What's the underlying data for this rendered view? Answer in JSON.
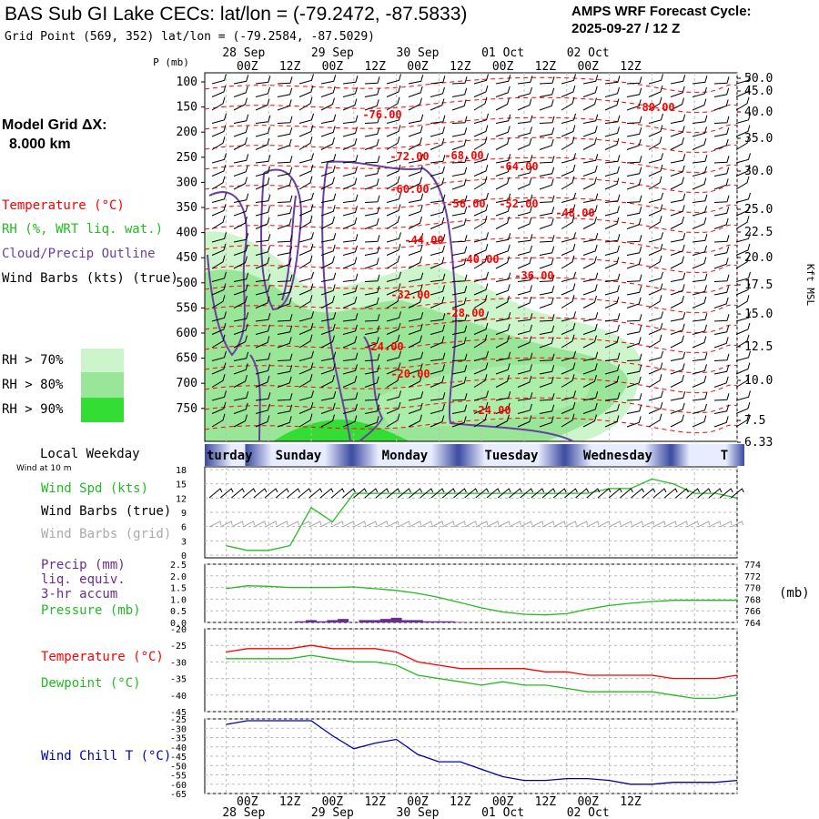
{
  "header": {
    "title": "BAS Sub GI Lake CECs:  lat/lon = (-79.2472, -87.5833)",
    "subtitle": "Grid Point (569, 352) lat/lon = (-79.2584, -87.5029)",
    "cycle_label": "AMPS WRF Forecast Cycle:",
    "cycle_value": "2025-09-27 / 12  Z"
  },
  "model_grid": {
    "label": "Model Grid ΔX:",
    "value": "8.000 km"
  },
  "legend": {
    "temperature": "Temperature (°C)",
    "rh": "RH (%, WRT liq. wat.)",
    "cloud": "Cloud/Precip Outline",
    "wind": "Wind Barbs (kts) (true)",
    "rh70": "RH > 70%",
    "rh80": "RH > 80%",
    "rh90": "RH > 90%"
  },
  "colors": {
    "temperature": "#ff0000",
    "rh": "#22bb22",
    "cloud": "#6a3fa0",
    "rh70": "#ccf5cc",
    "rh80": "#99e699",
    "rh90": "#33dd33",
    "windchill": "#0000aa",
    "grid_barbs": "#aaaaaa",
    "precip": "#6a2d8f",
    "day_band": "#3a4aa0"
  },
  "time_axis": {
    "hours": [
      "00Z",
      "12Z",
      "00Z",
      "12Z",
      "00Z",
      "12Z",
      "00Z",
      "12Z",
      "00Z",
      "12Z"
    ],
    "dates": [
      "28 Sep",
      "29 Sep",
      "30 Sep",
      "01 Oct",
      "02 Oct"
    ],
    "days": [
      "Saturday",
      "Sunday",
      "Monday",
      "Tuesday",
      "Wednesday",
      "T"
    ]
  },
  "local_weekday": {
    "label": "Local Weekday",
    "wind_note": "Wind at 10 m"
  },
  "cross_section": {
    "ylabel": "P (mb)",
    "pressure_ticks": [
      "100",
      "150",
      "200",
      "250",
      "300",
      "350",
      "400",
      "450",
      "500",
      "550",
      "600",
      "650",
      "700",
      "750"
    ],
    "kft_ticks": [
      "50.0",
      "45.0",
      "40.0",
      "35.0",
      "30.0",
      "25.0",
      "22.5",
      "20.0",
      "17.5",
      "15.0",
      "12.5",
      "10.0",
      "7.5",
      "6.33"
    ],
    "kft_label": "Kft MSL",
    "temp_labels": [
      "-76.00",
      "-80.00",
      "-72.00",
      "-68.00",
      "-64.00",
      "-60.00",
      "-56.00",
      "-52.00",
      "-48.00",
      "-44.00",
      "-40.00",
      "-36.00",
      "-32.00",
      "-28.00",
      "-24.00",
      "-20.00",
      "-24.00"
    ]
  },
  "panel_wind": {
    "labels": {
      "speed": "Wind Spd (kts)",
      "barbs": "Wind Barbs (true)",
      "grid": "Wind Barbs (grid)"
    },
    "yticks": [
      "18",
      "15",
      "12",
      "9",
      "6",
      "3",
      "0"
    ]
  },
  "panel_precip": {
    "labels": {
      "precip1": "Precip (mm)",
      "precip2": "liq. equiv.",
      "precip3": "3-hr accum",
      "pressure": "Pressure (mb)",
      "unit": "(mb)"
    },
    "yticks_left": [
      "2.5",
      "2.0",
      "1.5",
      "1.0",
      "0.5",
      "0.0"
    ],
    "yticks_right": [
      "774",
      "772",
      "770",
      "768",
      "766",
      "764"
    ]
  },
  "panel_temp": {
    "labels": {
      "temperature": "Temperature (°C)",
      "dewpoint": "Dewpoint (°C)"
    },
    "yticks": [
      "-20",
      "-25",
      "-30",
      "-35",
      "-40",
      "-45"
    ]
  },
  "panel_windchill": {
    "labels": {
      "windchill": "Wind Chill T (°C)"
    },
    "yticks": [
      "-25",
      "-30",
      "-35",
      "-40",
      "-45",
      "-50",
      "-55",
      "-60",
      "-65"
    ]
  },
  "chart_data": [
    {
      "type": "line",
      "title": "Wind Spd (kts)",
      "x_hours": [
        0,
        6,
        12,
        18,
        24,
        30,
        36,
        42,
        48,
        54,
        60,
        66,
        72,
        78,
        84,
        90,
        96,
        102,
        108,
        114,
        120,
        126,
        132,
        138,
        144
      ],
      "series": [
        {
          "name": "Wind Spd (kts)",
          "values": [
            2,
            1,
            1,
            2,
            10,
            7,
            13,
            13,
            13,
            13,
            13,
            13,
            13,
            13,
            13,
            13,
            13,
            13,
            14,
            14,
            16,
            15,
            13,
            13,
            12
          ]
        }
      ],
      "ylim": [
        0,
        18
      ]
    },
    {
      "type": "line",
      "title": "Pressure (mb)",
      "x_hours": [
        0,
        6,
        12,
        18,
        24,
        30,
        36,
        42,
        48,
        54,
        60,
        66,
        72,
        78,
        84,
        90,
        96,
        102,
        108,
        114,
        120,
        126,
        132,
        138,
        144
      ],
      "series": [
        {
          "name": "Pressure (mb)",
          "values": [
            769.8,
            770.3,
            770.2,
            770.0,
            770.0,
            770.0,
            770.1,
            769.8,
            769.5,
            769.0,
            768.3,
            767.4,
            766.5,
            765.8,
            765.4,
            765.3,
            765.5,
            766.3,
            766.9,
            767.3,
            767.6,
            767.8,
            767.8,
            767.8,
            767.8
          ]
        }
      ],
      "ylim": [
        764,
        774
      ]
    },
    {
      "type": "bar",
      "title": "Precip (mm) 3-hr accum",
      "x_hours": [
        0,
        3,
        6,
        9,
        12,
        15,
        18,
        21,
        24,
        27,
        30,
        33,
        36,
        39,
        42,
        45,
        48,
        51,
        54,
        57,
        60,
        63,
        66,
        69,
        72
      ],
      "values": [
        0,
        0,
        0,
        0,
        0,
        0,
        0,
        0.05,
        0.1,
        0.05,
        0.1,
        0.15,
        0,
        0.1,
        0.1,
        0.15,
        0.2,
        0.1,
        0.1,
        0.05,
        0.05,
        0.05,
        0.02,
        0,
        0
      ],
      "ylim": [
        0,
        2.5
      ]
    },
    {
      "type": "line",
      "title": "Temperature / Dewpoint (°C)",
      "x_hours": [
        0,
        6,
        12,
        18,
        24,
        30,
        36,
        42,
        48,
        54,
        60,
        66,
        72,
        78,
        84,
        90,
        96,
        102,
        108,
        114,
        120,
        126,
        132,
        138,
        144
      ],
      "series": [
        {
          "name": "Temperature (°C)",
          "values": [
            -27,
            -26,
            -26,
            -26,
            -25,
            -26,
            -26,
            -26,
            -27,
            -30,
            -31,
            -32,
            -32,
            -32,
            -32,
            -33,
            -33,
            -34,
            -34,
            -34,
            -34,
            -35,
            -35,
            -35,
            -34
          ]
        },
        {
          "name": "Dewpoint (°C)",
          "values": [
            -29,
            -29,
            -29,
            -29,
            -28,
            -29,
            -30,
            -30,
            -31,
            -34,
            -35,
            -36,
            -37,
            -36,
            -37,
            -37,
            -38,
            -39,
            -39,
            -39,
            -39,
            -40,
            -41,
            -41,
            -40
          ]
        }
      ],
      "ylim": [
        -45,
        -20
      ]
    },
    {
      "type": "line",
      "title": "Wind Chill T (°C)",
      "x_hours": [
        0,
        6,
        12,
        18,
        24,
        30,
        36,
        42,
        48,
        54,
        60,
        66,
        72,
        78,
        84,
        90,
        96,
        102,
        108,
        114,
        120,
        126,
        132,
        138,
        144
      ],
      "series": [
        {
          "name": "Wind Chill T (°C)",
          "values": [
            -28,
            -26,
            -26,
            -26,
            -26,
            -34,
            -41,
            -38,
            -36,
            -44,
            -48,
            -48,
            -52,
            -56,
            -58,
            -58,
            -57,
            -57,
            -58,
            -60,
            -60,
            -59,
            -59,
            -59,
            -58
          ]
        }
      ],
      "ylim": [
        -65,
        -25
      ]
    }
  ]
}
